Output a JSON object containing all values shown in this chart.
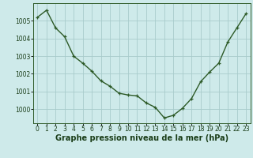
{
  "x": [
    0,
    1,
    2,
    3,
    4,
    5,
    6,
    7,
    8,
    9,
    10,
    11,
    12,
    13,
    14,
    15,
    16,
    17,
    18,
    19,
    20,
    21,
    22,
    23
  ],
  "y": [
    1005.2,
    1005.6,
    1004.6,
    1004.1,
    1003.0,
    1002.6,
    1002.15,
    1001.6,
    1001.3,
    1000.9,
    1000.8,
    1000.75,
    1000.35,
    1000.1,
    999.5,
    999.65,
    1000.05,
    1000.6,
    1001.55,
    1002.1,
    1002.6,
    1003.8,
    1004.6,
    1005.4
  ],
  "line_color": "#2d5a27",
  "marker": "+",
  "marker_size": 3.5,
  "background_color": "#ceeaea",
  "grid_color": "#a8cccc",
  "xlabel": "Graphe pression niveau de la mer (hPa)",
  "xlabel_fontsize": 7,
  "ylabel_values": [
    1000,
    1001,
    1002,
    1003,
    1004,
    1005
  ],
  "ylim": [
    999.2,
    1006.0
  ],
  "xlim": [
    -0.5,
    23.5
  ],
  "tick_fontsize": 5.5,
  "tick_color": "#1a3d18",
  "border_color": "#2d5a27",
  "line_width": 1.0,
  "marker_color": "#2d5a27"
}
